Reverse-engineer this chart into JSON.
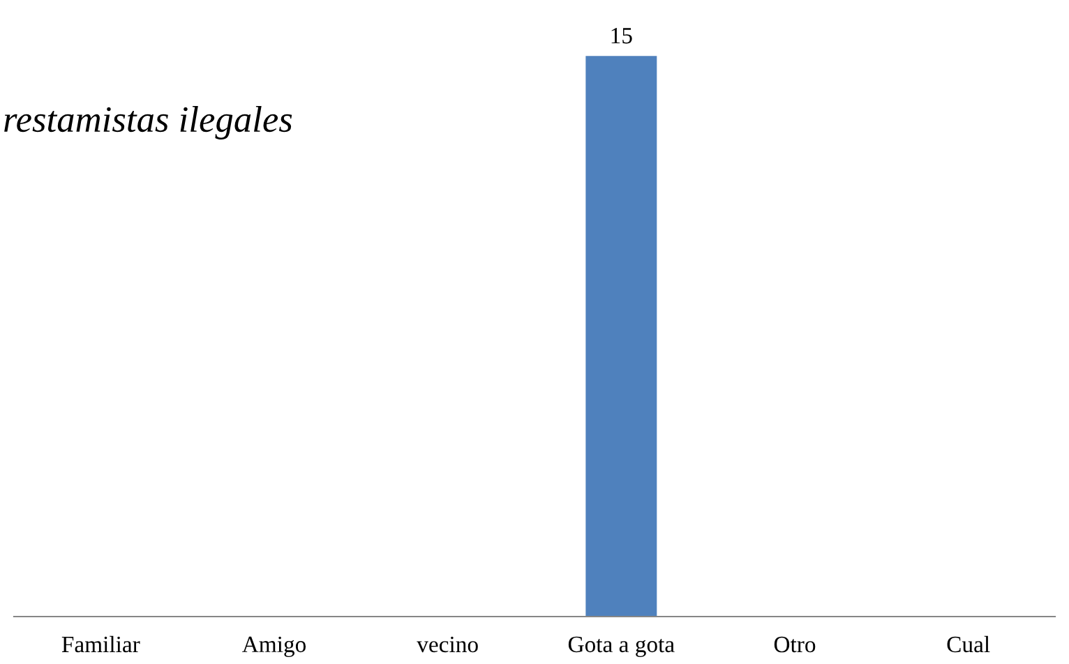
{
  "chart_data": {
    "type": "bar",
    "title": "restamistas ilegales",
    "categories": [
      "Familiar",
      "Amigo",
      "vecino",
      "Gota a gota",
      "Otro",
      "Cual"
    ],
    "values": [
      0,
      0,
      0,
      15,
      0,
      0
    ],
    "value_labels": [
      null,
      null,
      null,
      "15",
      null,
      null
    ],
    "color": "#4f81bd",
    "grid": false,
    "legend": false
  }
}
